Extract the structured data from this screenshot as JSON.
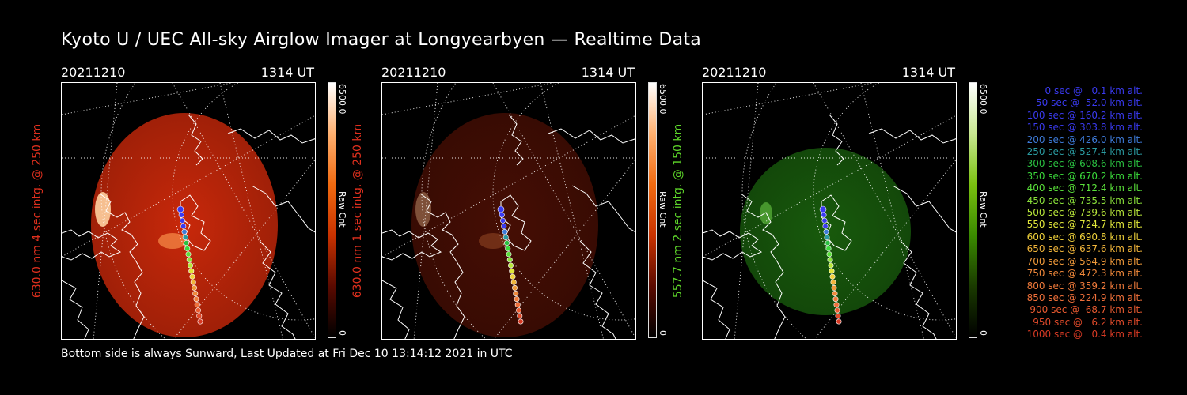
{
  "title": "Kyoto U / UEC All-sky Airglow Imager at Longyearbyen — Realtime Data",
  "footer": "Bottom side is always Sunward, Last Updated at Fri Dec 10 13:14:12 2021 in UTC",
  "colors": {
    "red_label": "#e0301e",
    "green_label": "#5ed62a",
    "background": "#000000"
  },
  "panels": [
    {
      "date": "20211210",
      "time": "1314 UT",
      "ylabel": "630.0 nm  4 sec intg. @ 250 km",
      "color_max": "6500.0",
      "color_min": "0",
      "color_label": "Raw Cnt",
      "channel": "red",
      "brightness": 1.0
    },
    {
      "date": "20211210",
      "time": "1314 UT",
      "ylabel": "630.0 nm  1 sec intg. @ 250 km",
      "color_max": "6500.0",
      "color_min": "0",
      "color_label": "Raw Cnt",
      "channel": "red",
      "brightness": 0.35
    },
    {
      "date": "20211210",
      "time": "1314 UT",
      "ylabel": "557.7 nm  2 sec intg. @ 150 km",
      "color_max": "6500.0",
      "color_min": "0",
      "color_label": "Raw Cnt",
      "channel": "green",
      "brightness": 0.6
    }
  ],
  "legend": [
    {
      "text": "0 sec @   0.1 km alt.",
      "color": "#3a3af0"
    },
    {
      "text": "50 sec @  52.0 km alt.",
      "color": "#3a3af0"
    },
    {
      "text": "100 sec @ 160.2 km alt.",
      "color": "#3a3af0"
    },
    {
      "text": "150 sec @ 303.8 km alt.",
      "color": "#3a3af0"
    },
    {
      "text": "200 sec @ 426.0 km alt.",
      "color": "#3d7ad8"
    },
    {
      "text": "250 sec @ 527.4 km alt.",
      "color": "#2a9aa0"
    },
    {
      "text": "300 sec @ 608.6 km alt.",
      "color": "#2ac040"
    },
    {
      "text": "350 sec @ 670.2 km alt.",
      "color": "#3ad83a"
    },
    {
      "text": "400 sec @ 712.4 km alt.",
      "color": "#5ae03a"
    },
    {
      "text": "450 sec @ 735.5 km alt.",
      "color": "#8ae03a"
    },
    {
      "text": "500 sec @ 739.6 km alt.",
      "color": "#b8e63a"
    },
    {
      "text": "550 sec @ 724.7 km alt.",
      "color": "#e0e63a"
    },
    {
      "text": "600 sec @ 690.8 km alt.",
      "color": "#f0d23a"
    },
    {
      "text": "650 sec @ 637.6 km alt.",
      "color": "#f0b43a"
    },
    {
      "text": "700 sec @ 564.9 km alt.",
      "color": "#f09a3a"
    },
    {
      "text": "750 sec @ 472.3 km alt.",
      "color": "#f0883a"
    },
    {
      "text": "800 sec @ 359.2 km alt.",
      "color": "#f07a3a"
    },
    {
      "text": "850 sec @ 224.9 km alt.",
      "color": "#f0703a"
    },
    {
      "text": "900 sec @  68.7 km alt.",
      "color": "#e85a30"
    },
    {
      "text": "950 sec @   6.2 km alt.",
      "color": "#e04a2a"
    },
    {
      "text": "1000 sec @   0.4 km alt.",
      "color": "#d83a24"
    }
  ]
}
